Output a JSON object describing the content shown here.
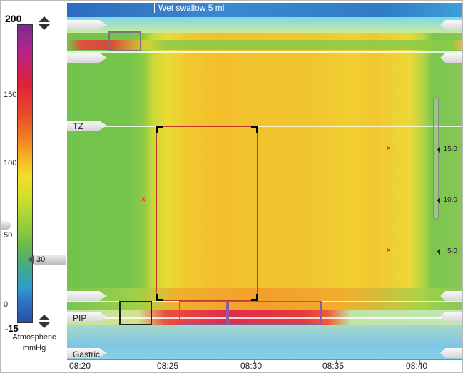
{
  "scale": {
    "max_label": "200",
    "min_label": "-15",
    "ticks": [
      {
        "label": "150",
        "value": 150
      },
      {
        "label": "100",
        "value": 100
      },
      {
        "label": "50",
        "value": 50
      },
      {
        "label": "0",
        "value": 0
      }
    ],
    "marker_label": "30",
    "unit_line1": "Atmospheric",
    "unit_line2": "mmHg",
    "colors": {
      "high": "#7a2d8e",
      "mid": "#f2de27",
      "low": "#2a4ea8"
    }
  },
  "plot": {
    "event_label": "Wet swallow 5 ml",
    "labels": {
      "tz": "TZ",
      "pip": "PIP",
      "gastric": "Gastric"
    },
    "depth_labels": [
      "15.0",
      "10.0",
      "5.0"
    ],
    "time_labels": [
      "08:20",
      "08:25",
      "08:30",
      "08:35",
      "08:40"
    ]
  }
}
